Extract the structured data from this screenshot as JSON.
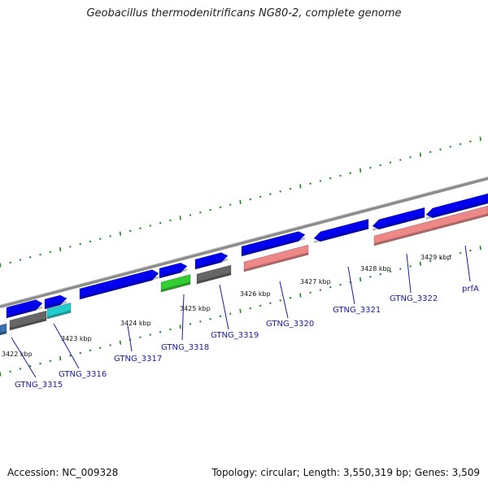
{
  "title": "Geobacillus thermodenitrificans NG80-2, complete genome",
  "footer": {
    "accession": "Accession: NC_009328",
    "summary": "Topology: circular; Length: 3,550,319 bp; Genes: 3,509"
  },
  "colors": {
    "backbone": "#8c8c8c",
    "ticks": "#1a8a1a",
    "cds": "#0000ee",
    "rna_grey": "#666666",
    "rna_green": "#33cc33",
    "pseudo_salmon": "#ee8888",
    "cyan": "#22cccc",
    "label": "#1a1aa8"
  },
  "scale_labels": [
    "3422 kbp",
    "3423 kbp",
    "3424 kbp",
    "3425 kbp",
    "3426 kbp",
    "3427 kbp",
    "3428 kbp",
    "3429 kbp"
  ],
  "gene_labels": [
    "GTNG_3315",
    "GTNG_3316",
    "GTNG_3317",
    "GTNG_3318",
    "GTNG_3319",
    "GTNG_3320",
    "GTNG_3321",
    "GTNG_3322",
    "prfA"
  ]
}
